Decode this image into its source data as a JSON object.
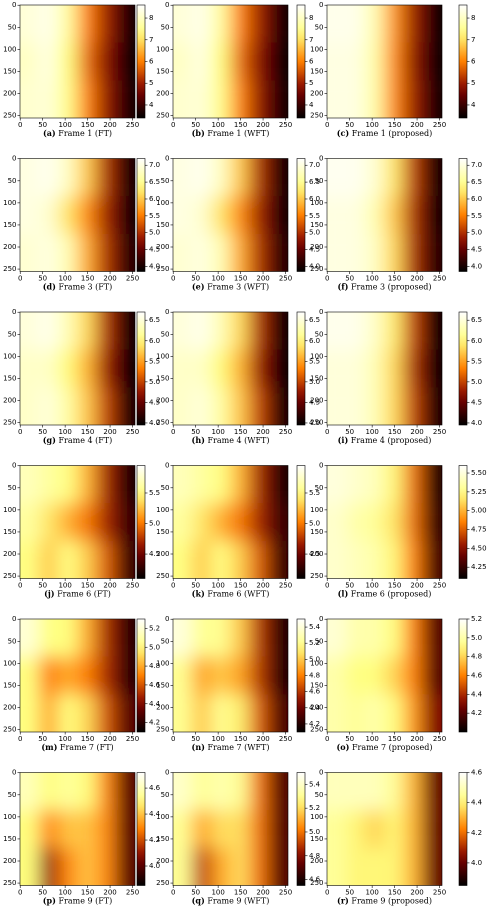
{
  "chart_data": [
    {
      "type": "heatmap",
      "label": "(a)",
      "caption": "Frame 1 (FT)",
      "colormap": "afmhot",
      "xlim": [
        -0.5,
        255.5
      ],
      "ylim": [
        255.5,
        -0.5
      ],
      "xticks": [
        0,
        50,
        100,
        150,
        200,
        250
      ],
      "yticks": [
        0,
        50,
        100,
        150,
        200,
        250
      ],
      "clim": [
        3.4,
        8.6
      ],
      "cticks": [
        4,
        5,
        6,
        7,
        8
      ],
      "values": [
        [
          8.2,
          8.4,
          7.6,
          6.0,
          5.0,
          3.6
        ],
        [
          8.0,
          8.3,
          7.3,
          5.8,
          4.8,
          3.5
        ],
        [
          8.1,
          8.2,
          7.4,
          6.0,
          4.9,
          3.6
        ]
      ]
    },
    {
      "type": "heatmap",
      "label": "(b)",
      "caption": "Frame 1 (WFT)",
      "colormap": "afmhot",
      "xlim": [
        -0.5,
        255.5
      ],
      "ylim": [
        255.5,
        -0.5
      ],
      "xticks": [
        0,
        50,
        100,
        150,
        200,
        250
      ],
      "yticks": [
        0,
        50,
        100,
        150,
        200,
        250
      ],
      "clim": [
        3.4,
        8.6
      ],
      "cticks": [
        4,
        5,
        6,
        7,
        8
      ],
      "values": [
        [
          8.2,
          8.4,
          7.6,
          6.0,
          5.0,
          3.6
        ],
        [
          8.0,
          8.3,
          7.3,
          5.8,
          4.8,
          3.5
        ],
        [
          8.1,
          8.2,
          7.4,
          6.0,
          4.9,
          3.6
        ]
      ]
    },
    {
      "type": "heatmap",
      "label": "(c)",
      "caption": "Frame 1 (proposed)",
      "colormap": "afmhot",
      "xlim": [
        -0.5,
        255.5
      ],
      "ylim": [
        255.5,
        -0.5
      ],
      "xticks": [
        0,
        50,
        100,
        150,
        200,
        250
      ],
      "yticks": [
        0,
        50,
        100,
        150,
        200,
        250
      ],
      "clim": [
        3.4,
        8.6
      ],
      "cticks": [
        4,
        5,
        6,
        7,
        8
      ],
      "values": [
        [
          8.4,
          8.4,
          7.8,
          6.2,
          5.0,
          3.5
        ],
        [
          8.3,
          8.3,
          7.7,
          6.1,
          4.9,
          3.5
        ],
        [
          8.3,
          8.3,
          7.7,
          6.1,
          5.0,
          3.6
        ]
      ]
    },
    {
      "type": "heatmap",
      "label": "(d)",
      "caption": "Frame 3 (FT)",
      "colormap": "afmhot",
      "xlim": [
        -0.5,
        255.5
      ],
      "ylim": [
        255.5,
        -0.5
      ],
      "xticks": [
        0,
        50,
        100,
        150,
        200,
        250
      ],
      "yticks": [
        0,
        50,
        100,
        150,
        200,
        250
      ],
      "clim": [
        3.85,
        7.2
      ],
      "cticks": [
        {
          "value": 4.0,
          "label": "4.0"
        },
        4.5,
        {
          "value": 5.0,
          "label": "5.0"
        },
        5.5,
        {
          "value": 6.0,
          "label": "6.0"
        },
        6.5,
        {
          "value": 7.0,
          "label": "7.0"
        }
      ],
      "values": [
        [
          7.0,
          7.1,
          6.8,
          6.0,
          5.0,
          4.0
        ],
        [
          7.0,
          6.9,
          6.2,
          5.6,
          4.9,
          4.0
        ],
        [
          6.9,
          7.0,
          6.7,
          5.8,
          5.0,
          4.1
        ]
      ]
    },
    {
      "type": "heatmap",
      "label": "(e)",
      "caption": "Frame 3 (WFT)",
      "colormap": "afmhot",
      "xlim": [
        -0.5,
        255.5
      ],
      "ylim": [
        255.5,
        -0.5
      ],
      "xticks": [
        0,
        50,
        100,
        150,
        200,
        250
      ],
      "yticks": [
        0,
        50,
        100,
        150,
        200,
        250
      ],
      "clim": [
        3.85,
        7.2
      ],
      "cticks": [
        {
          "value": 4.0,
          "label": "4.0"
        },
        4.5,
        {
          "value": 5.0,
          "label": "5.0"
        },
        5.5,
        {
          "value": 6.0,
          "label": "6.0"
        },
        6.5,
        {
          "value": 7.0,
          "label": "7.0"
        }
      ],
      "values": [
        [
          7.0,
          7.1,
          6.8,
          6.0,
          5.0,
          4.0
        ],
        [
          7.0,
          6.9,
          6.2,
          5.6,
          4.9,
          4.0
        ],
        [
          6.9,
          7.0,
          6.7,
          5.8,
          5.0,
          4.1
        ]
      ]
    },
    {
      "type": "heatmap",
      "label": "(f)",
      "caption": "Frame 3 (proposed)",
      "colormap": "afmhot",
      "xlim": [
        -0.5,
        255.5
      ],
      "ylim": [
        255.5,
        -0.5
      ],
      "xticks": [
        0,
        50,
        100,
        150,
        200,
        250
      ],
      "yticks": [
        0,
        50,
        100,
        150,
        200,
        250
      ],
      "clim": [
        3.85,
        7.2
      ],
      "cticks": [
        {
          "value": 4.0,
          "label": "4.0"
        },
        4.5,
        {
          "value": 5.0,
          "label": "5.0"
        },
        5.5,
        {
          "value": 6.0,
          "label": "6.0"
        },
        6.5,
        {
          "value": 7.0,
          "label": "7.0"
        }
      ],
      "values": [
        [
          7.1,
          7.1,
          6.9,
          6.2,
          5.1,
          4.0
        ],
        [
          7.0,
          7.0,
          6.7,
          6.0,
          5.0,
          4.0
        ],
        [
          7.0,
          7.0,
          6.8,
          6.1,
          5.0,
          4.1
        ]
      ]
    },
    {
      "type": "heatmap",
      "label": "(g)",
      "caption": "Frame 4 (FT)",
      "colormap": "afmhot",
      "xlim": [
        -0.5,
        255.5
      ],
      "ylim": [
        255.5,
        -0.5
      ],
      "xticks": [
        0,
        50,
        100,
        150,
        200,
        250
      ],
      "yticks": [
        0,
        50,
        100,
        150,
        200,
        250
      ],
      "clim": [
        3.95,
        6.7
      ],
      "cticks": [
        {
          "value": 4.0,
          "label": "4.0"
        },
        4.5,
        {
          "value": 5.0,
          "label": "5.0"
        },
        5.5,
        {
          "value": 6.0,
          "label": "6.0"
        },
        6.5
      ],
      "values": [
        [
          6.5,
          6.6,
          6.3,
          5.8,
          4.9,
          4.0
        ],
        [
          6.4,
          6.4,
          6.0,
          5.6,
          4.8,
          4.0
        ],
        [
          6.4,
          6.5,
          6.2,
          5.7,
          5.0,
          4.1
        ]
      ]
    },
    {
      "type": "heatmap",
      "label": "(h)",
      "caption": "Frame 4 (WFT)",
      "colormap": "afmhot",
      "xlim": [
        -0.5,
        255.5
      ],
      "ylim": [
        255.5,
        -0.5
      ],
      "xticks": [
        0,
        50,
        100,
        150,
        200,
        250
      ],
      "yticks": [
        0,
        50,
        100,
        150,
        200,
        250
      ],
      "clim": [
        3.95,
        6.7
      ],
      "cticks": [
        {
          "value": 4.0,
          "label": "4.0"
        },
        4.5,
        {
          "value": 5.0,
          "label": "5.0"
        },
        5.5,
        {
          "value": 6.0,
          "label": "6.0"
        },
        6.5
      ],
      "values": [
        [
          6.5,
          6.6,
          6.3,
          5.8,
          4.9,
          4.0
        ],
        [
          6.4,
          6.4,
          6.0,
          5.6,
          4.8,
          4.0
        ],
        [
          6.4,
          6.5,
          6.2,
          5.7,
          5.0,
          4.1
        ]
      ]
    },
    {
      "type": "heatmap",
      "label": "(i)",
      "caption": "Frame 4 (proposed)",
      "colormap": "afmhot",
      "xlim": [
        -0.5,
        255.5
      ],
      "ylim": [
        255.5,
        -0.5
      ],
      "xticks": [
        0,
        50,
        100,
        150,
        200,
        250
      ],
      "yticks": [
        0,
        50,
        100,
        150,
        200,
        250
      ],
      "clim": [
        3.95,
        6.7
      ],
      "cticks": [
        {
          "value": 4.0,
          "label": "4.0"
        },
        4.5,
        {
          "value": 5.0,
          "label": "5.0"
        },
        5.5,
        {
          "value": 6.0,
          "label": "6.0"
        },
        6.5
      ],
      "values": [
        [
          6.6,
          6.6,
          6.4,
          5.9,
          5.0,
          4.0
        ],
        [
          6.5,
          6.5,
          6.3,
          5.8,
          4.9,
          4.0
        ],
        [
          6.5,
          6.5,
          6.3,
          5.8,
          5.0,
          4.1
        ]
      ]
    },
    {
      "type": "heatmap",
      "label": "(j)",
      "caption": "Frame 6 (FT)",
      "colormap": "afmhot",
      "xlim": [
        -0.5,
        255.5
      ],
      "ylim": [
        255.5,
        -0.5
      ],
      "xticks": [
        0,
        50,
        100,
        150,
        200,
        250
      ],
      "yticks": [
        0,
        50,
        100,
        150,
        200,
        250
      ],
      "clim": [
        4.1,
        5.95
      ],
      "cticks": [
        4.5,
        {
          "value": 5.0,
          "label": "5.0"
        },
        5.5
      ],
      "values": [
        [
          5.7,
          5.6,
          5.5,
          5.2,
          4.7,
          4.2
        ],
        [
          5.6,
          5.4,
          5.2,
          5.0,
          4.7,
          4.3
        ],
        [
          5.5,
          5.3,
          5.5,
          5.3,
          4.9,
          4.3
        ]
      ]
    },
    {
      "type": "heatmap",
      "label": "(k)",
      "caption": "Frame 6 (WFT)",
      "colormap": "afmhot",
      "xlim": [
        -0.5,
        255.5
      ],
      "ylim": [
        255.5,
        -0.5
      ],
      "xticks": [
        0,
        50,
        100,
        150,
        200,
        250
      ],
      "yticks": [
        0,
        50,
        100,
        150,
        200,
        250
      ],
      "clim": [
        4.1,
        5.95
      ],
      "cticks": [
        4.5,
        {
          "value": 5.0,
          "label": "5.0"
        },
        5.5
      ],
      "values": [
        [
          5.7,
          5.6,
          5.5,
          5.2,
          4.7,
          4.2
        ],
        [
          5.6,
          5.4,
          5.2,
          5.0,
          4.7,
          4.3
        ],
        [
          5.5,
          5.3,
          5.5,
          5.3,
          4.9,
          4.3
        ]
      ]
    },
    {
      "type": "heatmap",
      "label": "(l)",
      "caption": "Frame 6 (proposed)",
      "colormap": "afmhot",
      "xlim": [
        -0.5,
        255.5
      ],
      "ylim": [
        255.5,
        -0.5
      ],
      "xticks": [
        0,
        50,
        100,
        150,
        200,
        250
      ],
      "yticks": [
        0,
        50,
        100,
        150,
        200,
        250
      ],
      "clim": [
        4.1,
        5.6
      ],
      "cticks": [
        4.25,
        {
          "value": 4.5,
          "label": "4.50"
        },
        4.75,
        {
          "value": 5.0,
          "label": "5.00"
        },
        5.25,
        {
          "value": 5.5,
          "label": "5.50"
        }
      ],
      "values": [
        [
          5.5,
          5.45,
          5.4,
          5.2,
          4.8,
          4.2
        ],
        [
          5.45,
          5.35,
          5.3,
          5.15,
          4.8,
          4.25
        ],
        [
          5.45,
          5.4,
          5.35,
          5.2,
          4.85,
          4.3
        ]
      ]
    },
    {
      "type": "heatmap",
      "label": "(m)",
      "caption": "Frame 7 (FT)",
      "colormap": "afmhot",
      "xlim": [
        -0.5,
        255.5
      ],
      "ylim": [
        255.5,
        -0.5
      ],
      "xticks": [
        0,
        50,
        100,
        150,
        200,
        250
      ],
      "yticks": [
        0,
        50,
        100,
        150,
        200,
        250
      ],
      "clim": [
        4.1,
        5.3
      ],
      "cticks": [
        4.2,
        4.4,
        4.6,
        4.8,
        {
          "value": 5.0,
          "label": "5.0"
        },
        5.2
      ],
      "values": [
        [
          5.2,
          5.0,
          5.0,
          4.8,
          4.5,
          4.2
        ],
        [
          5.0,
          4.7,
          4.8,
          4.7,
          4.5,
          4.2
        ],
        [
          5.0,
          4.8,
          5.0,
          4.9,
          4.6,
          4.3
        ]
      ]
    },
    {
      "type": "heatmap",
      "label": "(n)",
      "caption": "Frame 7 (WFT)",
      "colormap": "afmhot",
      "xlim": [
        -0.5,
        255.5
      ],
      "ylim": [
        255.5,
        -0.5
      ],
      "xticks": [
        0,
        50,
        100,
        150,
        200,
        250
      ],
      "yticks": [
        0,
        50,
        100,
        150,
        200,
        250
      ],
      "clim": [
        4.1,
        5.5
      ],
      "cticks": [
        4.2,
        4.4,
        4.6,
        4.8,
        {
          "value": 5.0,
          "label": "5.0"
        },
        5.2,
        5.4
      ],
      "values": [
        [
          5.4,
          5.2,
          5.2,
          5.0,
          4.6,
          4.2
        ],
        [
          5.2,
          4.9,
          5.0,
          4.9,
          4.6,
          4.2
        ],
        [
          5.2,
          5.0,
          5.2,
          5.1,
          4.7,
          4.3
        ]
      ]
    },
    {
      "type": "heatmap",
      "label": "(o)",
      "caption": "Frame 7 (proposed)",
      "colormap": "afmhot",
      "xlim": [
        -0.5,
        255.5
      ],
      "ylim": [
        255.5,
        -0.5
      ],
      "xticks": [
        0,
        50,
        100,
        150,
        200,
        250
      ],
      "yticks": [
        0,
        50,
        100,
        150,
        200,
        250
      ],
      "clim": [
        4.0,
        5.2
      ],
      "cticks": [
        4.2,
        4.4,
        4.6,
        4.8,
        {
          "value": 5.0,
          "label": "5.0"
        },
        5.2
      ],
      "values": [
        [
          5.1,
          5.0,
          5.0,
          4.9,
          4.6,
          4.2
        ],
        [
          5.0,
          4.9,
          4.9,
          4.8,
          4.6,
          4.2
        ],
        [
          5.0,
          4.95,
          5.0,
          4.9,
          4.65,
          4.3
        ]
      ]
    },
    {
      "type": "heatmap",
      "label": "(p)",
      "caption": "Frame 9 (FT)",
      "colormap": "afmhot",
      "xlim": [
        -0.5,
        255.5
      ],
      "ylim": [
        255.5,
        -0.5
      ],
      "xticks": [
        0,
        50,
        100,
        150,
        200,
        250
      ],
      "yticks": [
        0,
        50,
        100,
        150,
        200,
        250
      ],
      "clim": [
        3.85,
        4.72
      ],
      "cticks": [
        {
          "value": 4.0,
          "label": "4.0"
        },
        4.2,
        4.4,
        4.6
      ],
      "values": [
        [
          4.6,
          4.5,
          4.55,
          4.5,
          4.3,
          4.0
        ],
        [
          4.5,
          4.3,
          4.4,
          4.4,
          4.3,
          4.0
        ],
        [
          4.5,
          4.1,
          4.3,
          4.4,
          4.3,
          4.0
        ]
      ]
    },
    {
      "type": "heatmap",
      "label": "(q)",
      "caption": "Frame 9 (WFT)",
      "colormap": "afmhot",
      "xlim": [
        -0.5,
        255.5
      ],
      "ylim": [
        255.5,
        -0.5
      ],
      "xticks": [
        0,
        50,
        100,
        150,
        200,
        250
      ],
      "yticks": [
        0,
        50,
        100,
        150,
        200,
        250
      ],
      "clim": [
        4.55,
        5.5
      ],
      "cticks": [
        4.6,
        4.8,
        {
          "value": 5.0,
          "label": "5.0"
        },
        5.2,
        5.4
      ],
      "values": [
        [
          5.4,
          5.3,
          5.35,
          5.3,
          5.0,
          4.7
        ],
        [
          5.3,
          5.1,
          5.2,
          5.2,
          5.0,
          4.7
        ],
        [
          5.3,
          4.9,
          5.1,
          5.2,
          5.0,
          4.7
        ]
      ]
    },
    {
      "type": "heatmap",
      "label": "(r)",
      "caption": "Frame 9 (proposed)",
      "colormap": "afmhot",
      "xlim": [
        -0.5,
        255.5
      ],
      "ylim": [
        255.5,
        -0.5
      ],
      "xticks": [
        0,
        50,
        100,
        150,
        200,
        250
      ],
      "yticks": [
        0,
        50,
        100,
        150,
        200,
        250
      ],
      "clim": [
        3.85,
        4.6
      ],
      "cticks": [
        {
          "value": 4.0,
          "label": "4.0"
        },
        4.2,
        4.4,
        4.6
      ],
      "values": [
        [
          4.5,
          4.5,
          4.5,
          4.45,
          4.3,
          4.0
        ],
        [
          4.45,
          4.4,
          4.35,
          4.4,
          4.3,
          4.0
        ],
        [
          4.45,
          4.4,
          4.4,
          4.4,
          4.3,
          4.0
        ]
      ]
    }
  ]
}
